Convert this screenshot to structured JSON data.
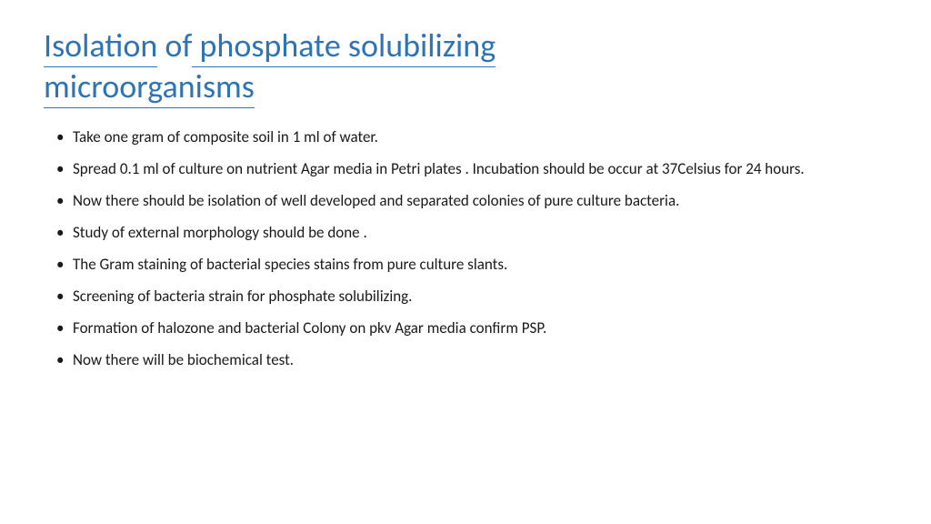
{
  "title": {
    "parts": [
      {
        "text": "Isolation",
        "underline": true
      },
      {
        "text": "  of",
        "underline": false
      },
      {
        "text": " phosphate",
        "underline": true
      },
      {
        "text": " solubilizing",
        "underline": true
      },
      {
        "text": " ",
        "underline": false,
        "break": true
      },
      {
        "text": "microorganisms",
        "underline": true
      }
    ],
    "color": "#2e74b5",
    "fontsize": 36
  },
  "bullets": [
    "Take one gram of composite soil in 1 ml of water.",
    "Spread 0.1 ml of culture on nutrient Agar media in Petri plates . Incubation should be occur at 37Celsius for 24 hours.",
    "Now there should be isolation of well developed and separated colonies of pure culture bacteria.",
    "Study of external morphology should be done .",
    "The Gram staining of bacterial species stains from pure culture slants.",
    "Screening of bacteria strain for phosphate solubilizing.",
    " Formation of halozone and bacterial Colony on pkv Agar media confirm PSP.",
    "Now there will be biochemical test."
  ],
  "body_color": "#1a1a1a",
  "body_fontsize": 17,
  "background_color": "#ffffff"
}
